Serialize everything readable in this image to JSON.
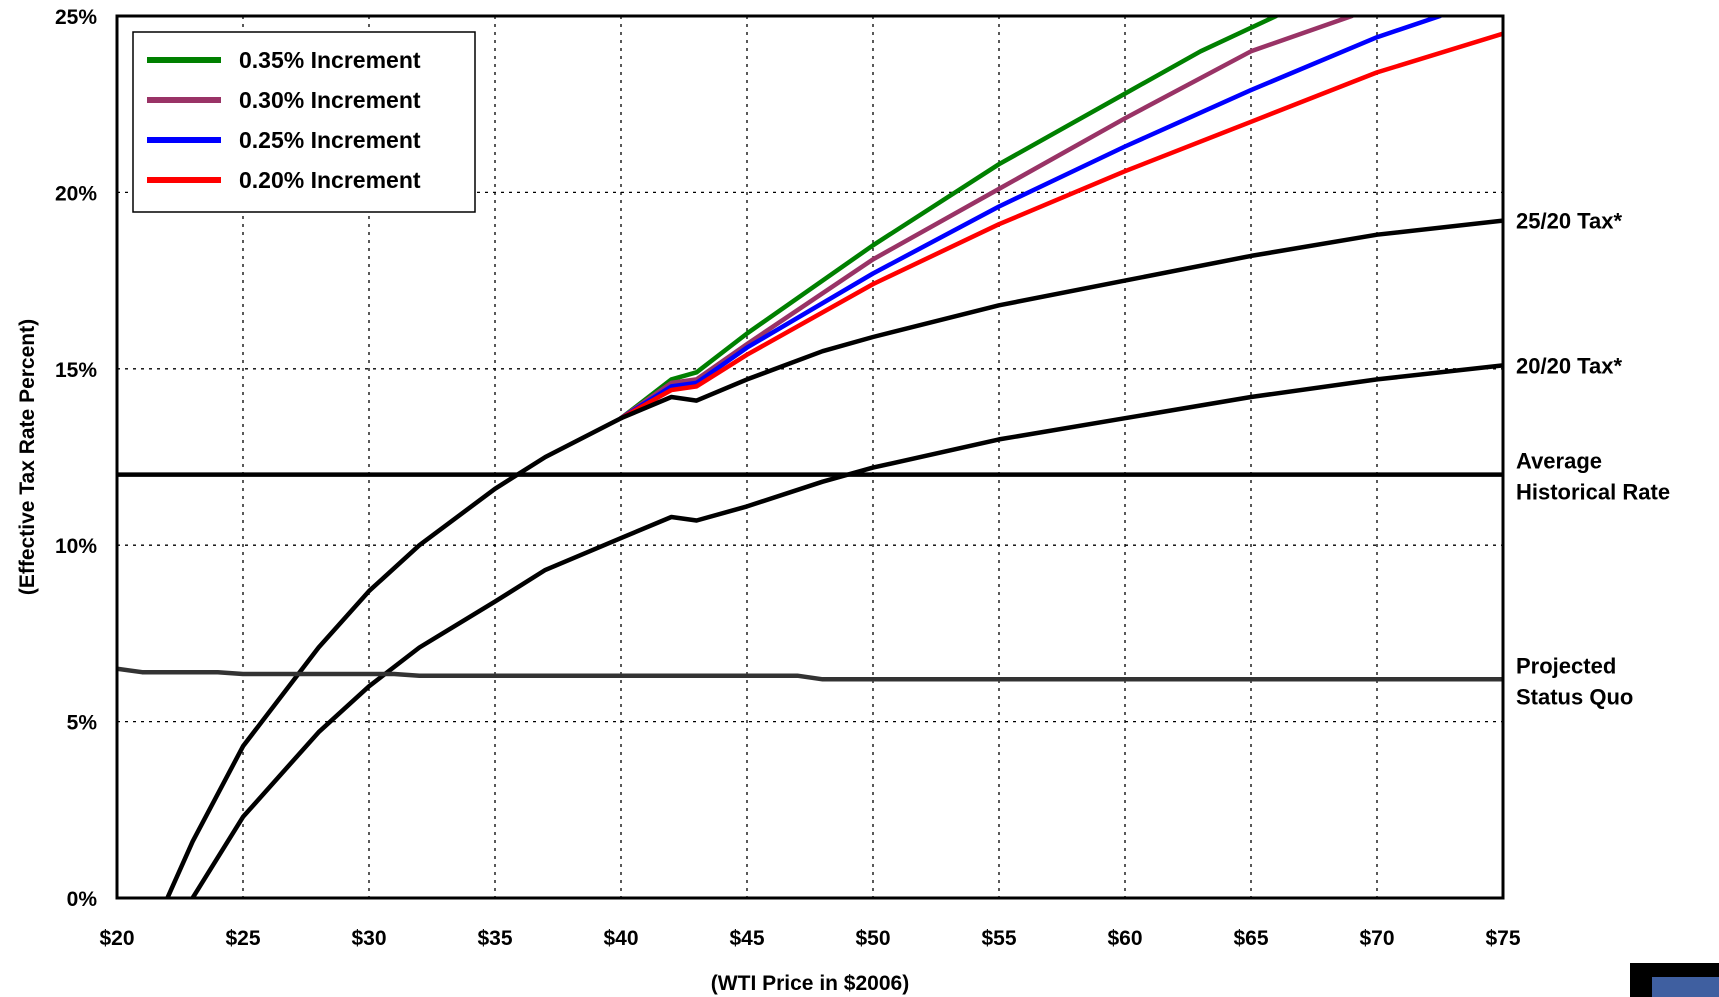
{
  "chart_data": {
    "type": "line",
    "title": "",
    "xlabel": "(WTI Price in $2006)",
    "ylabel": "(Effective Tax Rate Percent)",
    "xlim": [
      20,
      75
    ],
    "ylim": [
      0,
      25
    ],
    "x_ticks": [
      20,
      25,
      30,
      35,
      40,
      45,
      50,
      55,
      60,
      65,
      70,
      75
    ],
    "x_tick_labels": [
      "$20",
      "$25",
      "$30",
      "$35",
      "$40",
      "$45",
      "$50",
      "$55",
      "$60",
      "$65",
      "$70",
      "$75"
    ],
    "y_ticks": [
      0,
      5,
      10,
      15,
      20,
      25
    ],
    "y_tick_labels": [
      "0%",
      "5%",
      "10%",
      "15%",
      "20%",
      "25%"
    ],
    "grid": true,
    "legend_position": "top-left",
    "series": [
      {
        "name": "0.35% Increment",
        "color": "#008000",
        "in_legend": true,
        "points": [
          [
            40,
            13.6
          ],
          [
            42,
            14.7
          ],
          [
            43,
            14.9
          ],
          [
            45,
            16.0
          ],
          [
            50,
            18.5
          ],
          [
            55,
            20.8
          ],
          [
            60,
            22.8
          ],
          [
            63,
            24.0
          ],
          [
            66,
            25.0
          ]
        ]
      },
      {
        "name": "0.30% Increment",
        "color": "#993366",
        "in_legend": true,
        "points": [
          [
            40,
            13.6
          ],
          [
            42,
            14.6
          ],
          [
            43,
            14.7
          ],
          [
            45,
            15.7
          ],
          [
            50,
            18.1
          ],
          [
            55,
            20.1
          ],
          [
            60,
            22.1
          ],
          [
            65,
            24.0
          ],
          [
            69,
            25.0
          ]
        ]
      },
      {
        "name": "0.25% Increment",
        "color": "#0000FF",
        "in_legend": true,
        "points": [
          [
            40,
            13.6
          ],
          [
            42,
            14.5
          ],
          [
            43,
            14.6
          ],
          [
            45,
            15.6
          ],
          [
            50,
            17.7
          ],
          [
            55,
            19.6
          ],
          [
            60,
            21.3
          ],
          [
            65,
            22.9
          ],
          [
            70,
            24.4
          ],
          [
            72.5,
            25.0
          ]
        ]
      },
      {
        "name": "0.20% Increment",
        "color": "#FF0000",
        "in_legend": true,
        "points": [
          [
            40,
            13.6
          ],
          [
            42,
            14.4
          ],
          [
            43,
            14.5
          ],
          [
            45,
            15.4
          ],
          [
            50,
            17.4
          ],
          [
            55,
            19.1
          ],
          [
            60,
            20.6
          ],
          [
            65,
            22.0
          ],
          [
            70,
            23.4
          ],
          [
            75,
            24.5
          ]
        ]
      },
      {
        "name": "25/20 Tax*",
        "color": "#000000",
        "in_legend": false,
        "points": [
          [
            22,
            0
          ],
          [
            23,
            1.6
          ],
          [
            25,
            4.3
          ],
          [
            28,
            7.1
          ],
          [
            30,
            8.7
          ],
          [
            32,
            10.0
          ],
          [
            35,
            11.6
          ],
          [
            37,
            12.5
          ],
          [
            40,
            13.6
          ],
          [
            42,
            14.2
          ],
          [
            43,
            14.1
          ],
          [
            45,
            14.7
          ],
          [
            48,
            15.5
          ],
          [
            50,
            15.9
          ],
          [
            55,
            16.8
          ],
          [
            60,
            17.5
          ],
          [
            65,
            18.2
          ],
          [
            70,
            18.8
          ],
          [
            75,
            19.2
          ]
        ]
      },
      {
        "name": "20/20 Tax*",
        "color": "#000000",
        "in_legend": false,
        "points": [
          [
            23,
            0
          ],
          [
            25,
            2.3
          ],
          [
            28,
            4.7
          ],
          [
            30,
            6.0
          ],
          [
            32,
            7.1
          ],
          [
            35,
            8.4
          ],
          [
            37,
            9.3
          ],
          [
            40,
            10.2
          ],
          [
            42,
            10.8
          ],
          [
            43,
            10.7
          ],
          [
            45,
            11.1
          ],
          [
            48,
            11.8
          ],
          [
            50,
            12.2
          ],
          [
            55,
            13.0
          ],
          [
            60,
            13.6
          ],
          [
            65,
            14.2
          ],
          [
            70,
            14.7
          ],
          [
            75,
            15.1
          ]
        ]
      },
      {
        "name": "Average Historical Rate",
        "color": "#000000",
        "in_legend": false,
        "points": [
          [
            20,
            12.0
          ],
          [
            75,
            12.0
          ]
        ]
      },
      {
        "name": "Projected Status Quo",
        "color": "#333333",
        "in_legend": false,
        "points": [
          [
            20,
            6.5
          ],
          [
            21,
            6.4
          ],
          [
            24,
            6.4
          ],
          [
            25,
            6.35
          ],
          [
            31,
            6.35
          ],
          [
            32,
            6.3
          ],
          [
            47,
            6.3
          ],
          [
            48,
            6.2
          ],
          [
            75,
            6.2
          ]
        ]
      }
    ],
    "right_labels": [
      {
        "lines": [
          "25/20 Tax*"
        ],
        "y": 19.2
      },
      {
        "lines": [
          "20/20 Tax*"
        ],
        "y": 15.1
      },
      {
        "lines": [
          "Average",
          "Historical Rate"
        ],
        "y": 12.0
      },
      {
        "lines": [
          "Projected",
          "Status Quo"
        ],
        "y": 6.2
      }
    ]
  }
}
